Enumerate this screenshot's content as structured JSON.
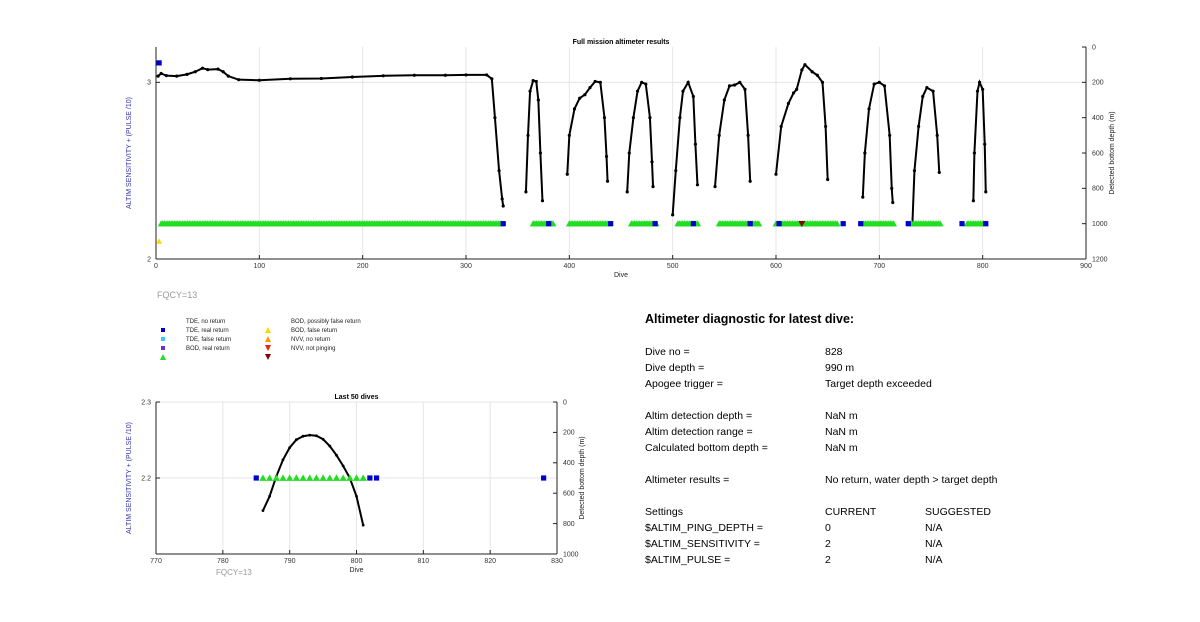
{
  "colors": {
    "depth_line": "#000000",
    "tde_no_return": "#0000cc",
    "tde_real_return": "#33ccff",
    "tde_false_return": "#6633cc",
    "bod_real_return": "#22dd22",
    "bod_possibly_false": "#ffd700",
    "bod_false_return": "#ff9900",
    "nvv_no_return": "#ee2200",
    "nvv_not_pinging": "#880000",
    "left_axis_label": "#3333aa",
    "fqcy": "#999999"
  },
  "fqcy_main": "FQCY=13",
  "fqcy_small": "FQCY=13",
  "legend": [
    {
      "label": "TDE, no return",
      "color": "#0000cc",
      "shape": "square"
    },
    {
      "label": "TDE, real return",
      "color": "#33ccff",
      "shape": "square"
    },
    {
      "label": "TDE, false return",
      "color": "#6633cc",
      "shape": "square"
    },
    {
      "label": "BOD, real return",
      "color": "#22dd22",
      "shape": "triangle-up"
    },
    {
      "label": "BOD, possibly false return",
      "color": "#ffd700",
      "shape": "triangle-up"
    },
    {
      "label": "BOD, false return",
      "color": "#ff9900",
      "shape": "triangle-up"
    },
    {
      "label": "NVV, no return",
      "color": "#ee2200",
      "shape": "triangle-down"
    },
    {
      "label": "NVV, not pinging",
      "color": "#880000",
      "shape": "triangle-down"
    }
  ],
  "chart_data": [
    {
      "type": "line",
      "title": "Full mission altimeter results",
      "xlabel": "Dive",
      "ylabel_left": "ALTIM SENSITIVITY + (PULSE /10)",
      "ylabel_right": "Detected bottom depth (m)",
      "xlim": [
        0,
        900
      ],
      "ylim_left": [
        2,
        3.2
      ],
      "ylim_right": [
        0,
        1200
      ],
      "right_axis_reversed": true,
      "x_ticks": [
        0,
        100,
        200,
        300,
        400,
        500,
        600,
        700,
        800,
        900
      ],
      "y_left_ticks": [
        2,
        3
      ],
      "y_right_ticks": [
        0,
        200,
        400,
        600,
        800,
        1000,
        1200
      ],
      "grid": true,
      "series": [
        {
          "name": "Detected bottom depth",
          "axis": "right",
          "segments": [
            [
              [
                2,
                165
              ],
              [
                5,
                150
              ],
              [
                10,
                162
              ],
              [
                20,
                165
              ],
              [
                30,
                155
              ],
              [
                38,
                140
              ],
              [
                45,
                120
              ],
              [
                50,
                128
              ],
              [
                60,
                125
              ],
              [
                65,
                140
              ],
              [
                70,
                165
              ],
              [
                80,
                185
              ],
              [
                100,
                188
              ],
              [
                130,
                180
              ],
              [
                160,
                178
              ],
              [
                190,
                170
              ],
              [
                220,
                163
              ],
              [
                250,
                160
              ],
              [
                280,
                160
              ],
              [
                300,
                158
              ],
              [
                320,
                158
              ],
              [
                325,
                180
              ],
              [
                328,
                400
              ],
              [
                332,
                700
              ],
              [
                335,
                860
              ],
              [
                336,
                900
              ]
            ],
            [
              [
                358,
                820
              ],
              [
                360,
                500
              ],
              [
                362,
                250
              ],
              [
                365,
                190
              ],
              [
                368,
                195
              ],
              [
                370,
                300
              ],
              [
                372,
                600
              ],
              [
                374,
                870
              ]
            ],
            [
              [
                398,
                720
              ],
              [
                400,
                500
              ],
              [
                405,
                350
              ],
              [
                410,
                290
              ],
              [
                415,
                270
              ],
              [
                420,
                230
              ],
              [
                425,
                195
              ],
              [
                430,
                200
              ],
              [
                434,
                400
              ],
              [
                436,
                620
              ],
              [
                437,
                760
              ]
            ],
            [
              [
                456,
                820
              ],
              [
                458,
                600
              ],
              [
                462,
                400
              ],
              [
                466,
                250
              ],
              [
                470,
                200
              ],
              [
                474,
                210
              ],
              [
                478,
                400
              ],
              [
                480,
                650
              ],
              [
                481,
                790
              ]
            ],
            [
              [
                500,
                950
              ],
              [
                503,
                700
              ],
              [
                507,
                400
              ],
              [
                510,
                250
              ],
              [
                515,
                200
              ],
              [
                520,
                280
              ],
              [
                522,
                550
              ],
              [
                524,
                780
              ]
            ],
            [
              [
                541,
                790
              ],
              [
                545,
                500
              ],
              [
                550,
                300
              ],
              [
                555,
                220
              ],
              [
                560,
                215
              ],
              [
                565,
                200
              ],
              [
                570,
                240
              ],
              [
                573,
                500
              ],
              [
                575,
                760
              ]
            ],
            [
              [
                600,
                720
              ],
              [
                605,
                450
              ],
              [
                612,
                320
              ],
              [
                617,
                260
              ],
              [
                620,
                240
              ],
              [
                625,
                130
              ],
              [
                628,
                100
              ],
              [
                635,
                140
              ],
              [
                640,
                160
              ],
              [
                645,
                200
              ],
              [
                648,
                450
              ],
              [
                650,
                750
              ]
            ],
            [
              [
                684,
                850
              ],
              [
                686,
                600
              ],
              [
                690,
                350
              ],
              [
                695,
                210
              ],
              [
                700,
                200
              ],
              [
                705,
                220
              ],
              [
                710,
                500
              ],
              [
                712,
                800
              ],
              [
                713,
                880
              ]
            ],
            [
              [
                732,
                1000
              ],
              [
                734,
                700
              ],
              [
                738,
                450
              ],
              [
                742,
                280
              ],
              [
                746,
                230
              ],
              [
                752,
                250
              ],
              [
                756,
                500
              ],
              [
                758,
                710
              ]
            ],
            [
              [
                791,
                870
              ],
              [
                792,
                600
              ],
              [
                795,
                250
              ],
              [
                797,
                200
              ],
              [
                800,
                240
              ],
              [
                802,
                550
              ],
              [
                803,
                820
              ]
            ]
          ]
        },
        {
          "name": "BOD, real return",
          "axis": "left",
          "value": 2.2,
          "x_ranges": [
            [
              5,
              335
            ],
            [
              365,
              385
            ],
            [
              400,
              440
            ],
            [
              460,
              485
            ],
            [
              505,
              525
            ],
            [
              545,
              585
            ],
            [
              600,
              660
            ],
            [
              685,
              715
            ],
            [
              730,
              760
            ],
            [
              785,
              803
            ]
          ]
        },
        {
          "name": "TDE, no return",
          "axis": "left",
          "value": 2.2,
          "x": [
            336,
            380,
            440,
            483,
            520,
            575,
            603,
            665,
            682,
            728,
            780,
            803
          ]
        },
        {
          "name": "NVV, not pinging",
          "axis": "left",
          "value": 2.2,
          "x": [
            625
          ]
        },
        {
          "name": "TDE, no return (start)",
          "axis": "left",
          "value": 3.11,
          "x": [
            3
          ]
        },
        {
          "name": "BOD, possibly false return (start)",
          "axis": "left",
          "value": 2.1,
          "x": [
            3
          ]
        }
      ]
    },
    {
      "type": "line",
      "title": "Last 50 dives",
      "xlabel": "Dive",
      "ylabel_left": "ALTIM SENSITIVITY + (PULSE /10)",
      "ylabel_right": "Detected bottom depth (m)",
      "xlim": [
        770,
        830
      ],
      "ylim_left": [
        2.1,
        2.3
      ],
      "ylim_right": [
        0,
        1000
      ],
      "right_axis_reversed": true,
      "x_ticks": [
        770,
        780,
        790,
        800,
        810,
        820,
        830
      ],
      "y_left_ticks": [
        2.2,
        2.3
      ],
      "y_right_ticks": [
        0,
        200,
        400,
        600,
        800,
        1000
      ],
      "grid": true,
      "series": [
        {
          "name": "Detected bottom depth",
          "axis": "right",
          "points": [
            [
              786,
              715
            ],
            [
              787,
              620
            ],
            [
              788,
              490
            ],
            [
              789,
              380
            ],
            [
              790,
              300
            ],
            [
              791,
              248
            ],
            [
              792,
              225
            ],
            [
              793,
              218
            ],
            [
              794,
              222
            ],
            [
              795,
              245
            ],
            [
              796,
              290
            ],
            [
              797,
              350
            ],
            [
              798,
              420
            ],
            [
              799,
              500
            ],
            [
              800,
              620
            ],
            [
              801,
              810
            ]
          ]
        },
        {
          "name": "BOD, real return",
          "axis": "left",
          "value": 2.2,
          "x": [
            786,
            787,
            788,
            789,
            790,
            791,
            792,
            793,
            794,
            795,
            796,
            797,
            798,
            799,
            800,
            801
          ]
        },
        {
          "name": "TDE, no return",
          "axis": "left",
          "value": 2.2,
          "x": [
            785,
            802,
            803,
            828
          ]
        }
      ]
    }
  ],
  "diagnostic": {
    "title": "Altimeter diagnostic for latest dive:",
    "rows": [
      {
        "label": "Dive no =",
        "value": "828"
      },
      {
        "label": "Dive depth =",
        "value": "990 m"
      },
      {
        "label": "Apogee trigger =",
        "value": "Target depth exceeded"
      },
      {
        "label": "Altim detection depth =",
        "value": "NaN m"
      },
      {
        "label": "Altim detection range =",
        "value": "NaN m"
      },
      {
        "label": "Calculated bottom depth =",
        "value": "NaN m"
      },
      {
        "label": "Altimeter results =",
        "value": "No return, water depth > target depth"
      }
    ],
    "settings_header": {
      "label": "Settings",
      "current": "CURRENT",
      "suggested": "SUGGESTED"
    },
    "settings": [
      {
        "label": "$ALTIM_PING_DEPTH =",
        "current": "0",
        "suggested": "N/A"
      },
      {
        "label": "$ALTIM_SENSITIVITY =",
        "current": "2",
        "suggested": "N/A"
      },
      {
        "label": "$ALTIM_PULSE =",
        "current": "2",
        "suggested": "N/A"
      }
    ]
  }
}
